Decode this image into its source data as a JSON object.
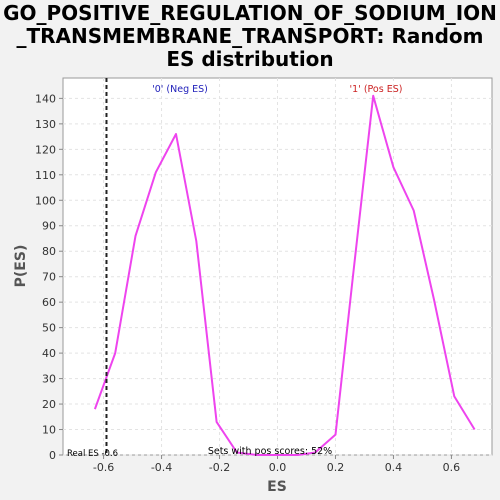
{
  "chart_data": {
    "type": "line",
    "title_lines": [
      "GO_POSITIVE_REGULATION_OF_SODIUM_ION",
      "_TRANSMEMBRANE_TRANSPORT: Random",
      "ES distribution"
    ],
    "xlabel": "ES",
    "ylabel": "P(ES)",
    "xlim": [
      -0.74,
      0.74
    ],
    "ylim": [
      0,
      148
    ],
    "xticks": [
      -0.6,
      -0.4,
      -0.2,
      0.0,
      0.2,
      0.4,
      0.6
    ],
    "xtick_labels": [
      "-0.6",
      "-0.4",
      "-0.2",
      "0.0",
      "0.2",
      "0.4",
      "0.6"
    ],
    "yticks": [
      0,
      10,
      20,
      30,
      40,
      50,
      60,
      70,
      80,
      90,
      100,
      110,
      120,
      130,
      140
    ],
    "ytick_labels": [
      "0",
      "10",
      "20",
      "30",
      "40",
      "50",
      "60",
      "70",
      "80",
      "90",
      "100",
      "110",
      "120",
      "130",
      "140"
    ],
    "grid": true,
    "series": [
      {
        "color": "#ee44ee",
        "x": [
          -0.63,
          -0.56,
          -0.49,
          -0.42,
          -0.35,
          -0.28,
          -0.21,
          -0.14,
          -0.07,
          0.0,
          0.07,
          0.13,
          0.2,
          0.26,
          0.33,
          0.4,
          0.47,
          0.54,
          0.61,
          0.68
        ],
        "y": [
          18,
          40,
          86,
          111,
          126,
          84,
          13,
          1,
          0,
          0,
          0,
          1,
          8,
          70,
          141,
          113,
          96,
          61,
          23,
          10
        ]
      }
    ],
    "real_es": {
      "x": -0.59,
      "label": "Real ES -0.6"
    },
    "annotations": {
      "neg_label": "'0' (Neg ES)",
      "pos_label": "'1' (Pos ES)",
      "neg_color": "#2222bb",
      "pos_color": "#cc2222",
      "pos_scores": "Sets with pos scores: 52%"
    }
  }
}
